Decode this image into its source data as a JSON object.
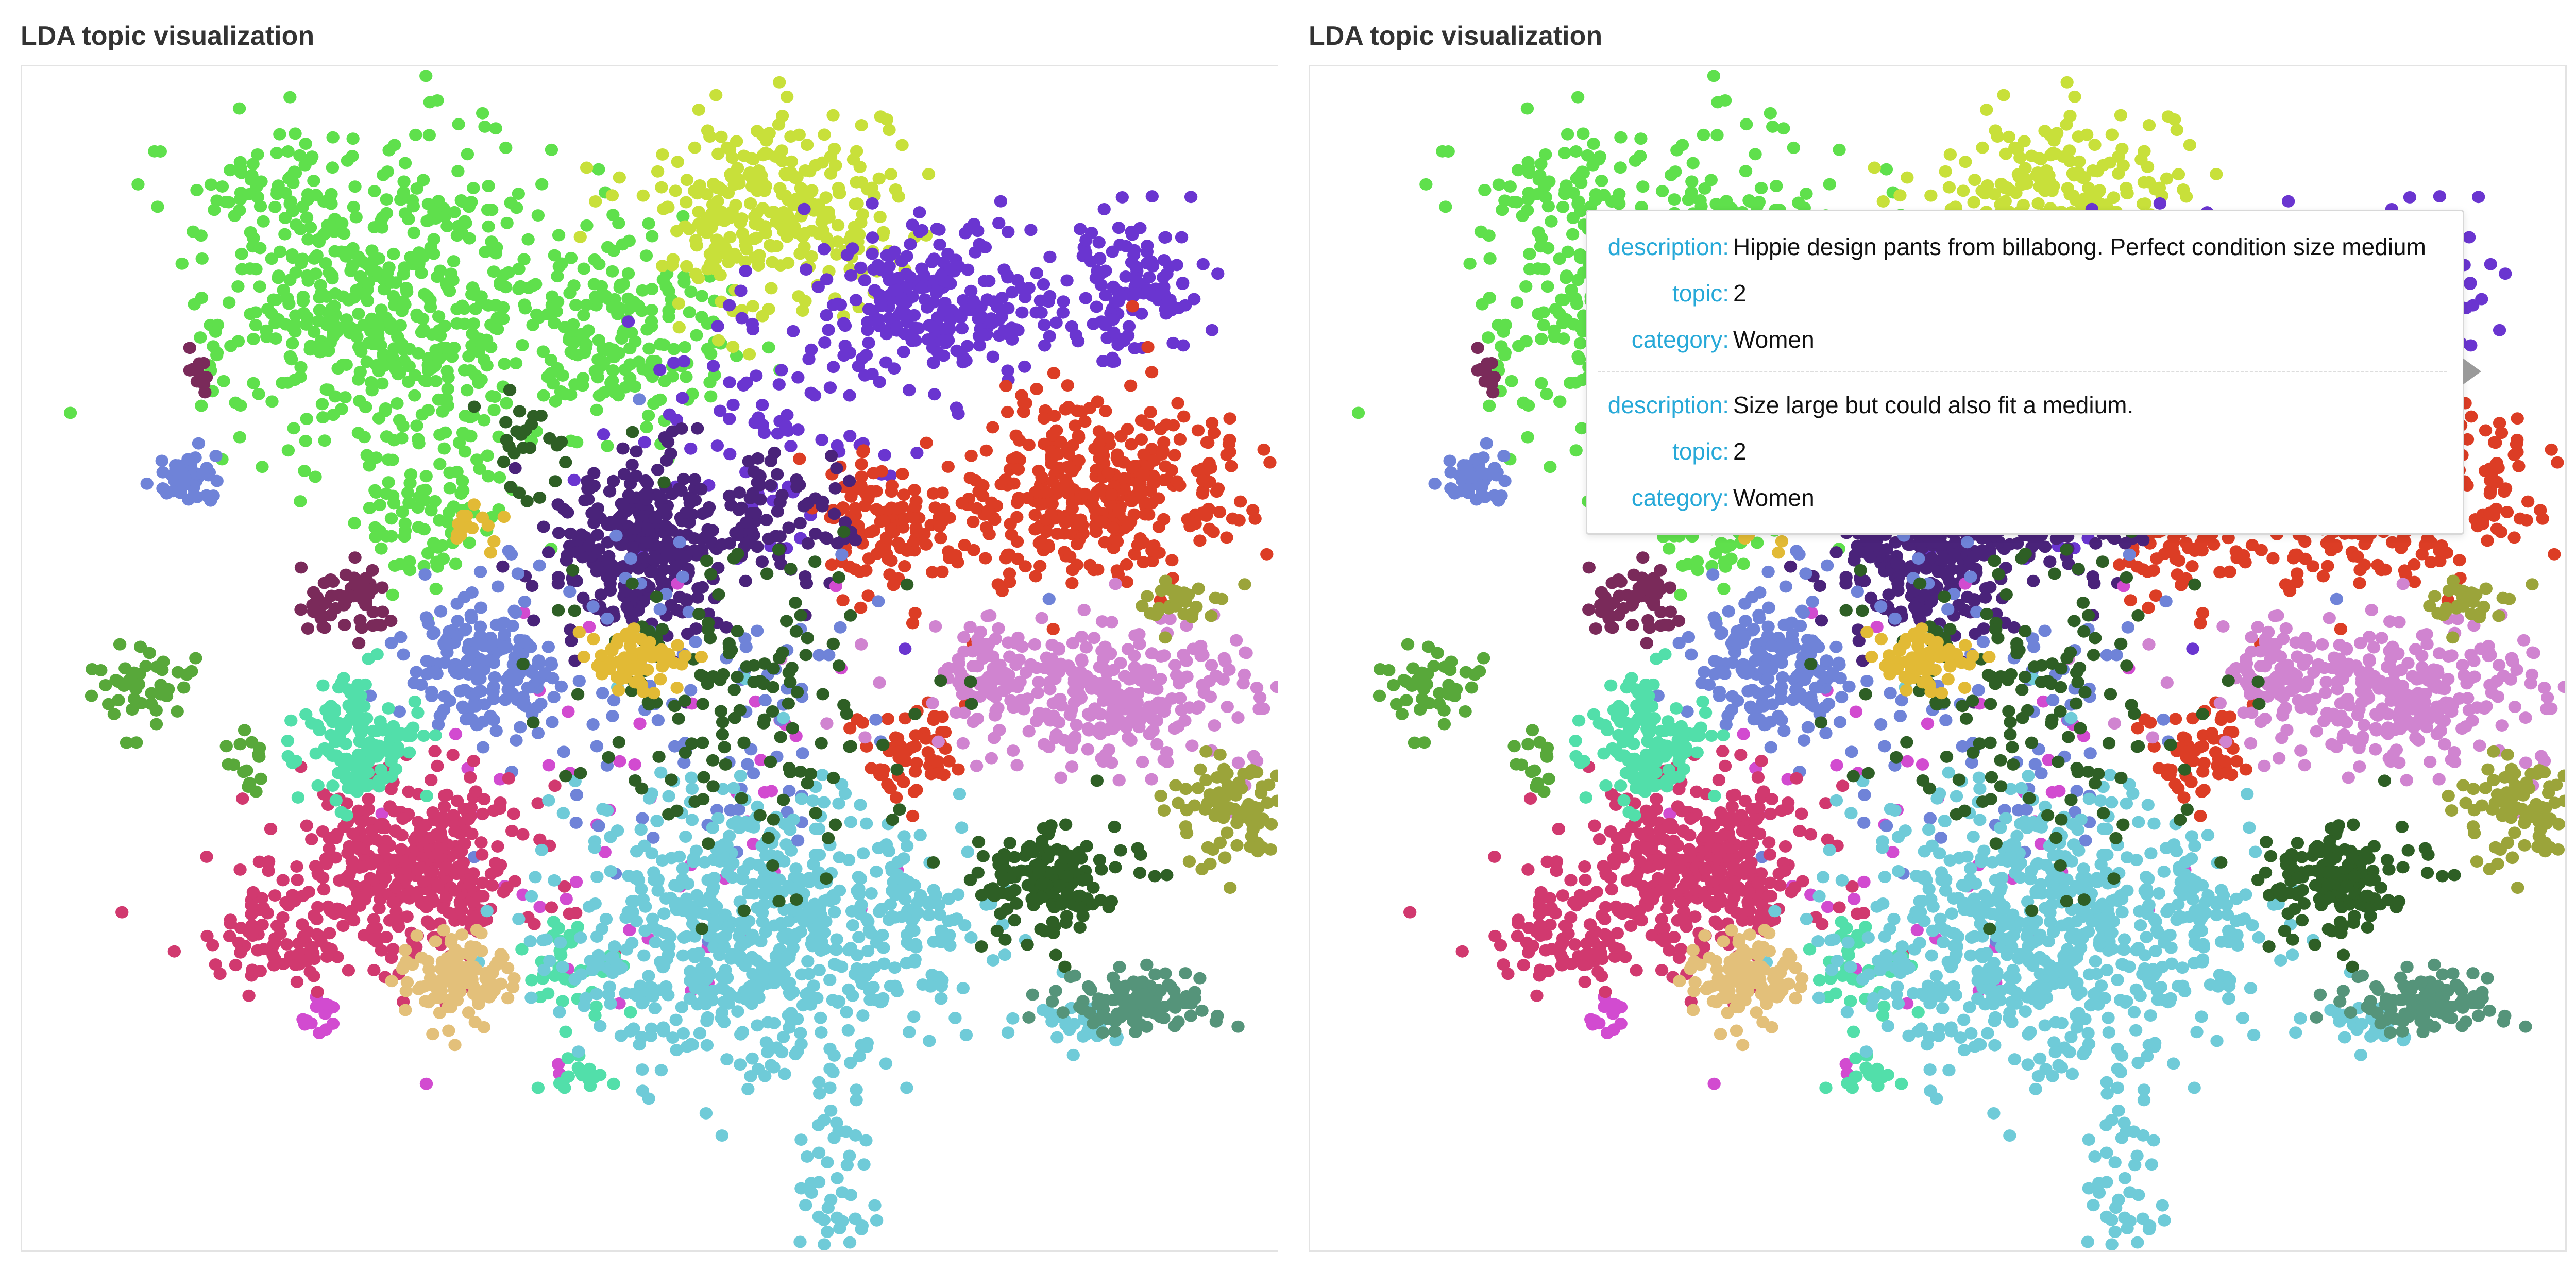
{
  "panels": [
    {
      "title": "LDA topic visualization"
    },
    {
      "title": "LDA topic visualization"
    }
  ],
  "tooltip": {
    "entries": [
      {
        "keys": {
          "description": "description:",
          "topic": "topic:",
          "category": "category:"
        },
        "description": "Hippie design pants from billabong. Perfect condition size medium",
        "topic": "2",
        "category": "Women"
      },
      {
        "keys": {
          "description": "description:",
          "topic": "topic:",
          "category": "category:"
        },
        "description": "Size large but could also fit a medium.",
        "topic": "2",
        "category": "Women"
      }
    ]
  },
  "chart_data": {
    "type": "scatter",
    "title": "LDA topic visualization",
    "xlabel": "",
    "ylabel": "",
    "xlim": [
      0,
      100
    ],
    "ylim": [
      0,
      100
    ],
    "grid": false,
    "legend": "none",
    "seed": 7,
    "topics": [
      {
        "color": "#5fe04c",
        "clusters": [
          {
            "x": 29,
            "y": 80,
            "sx": 7,
            "sy": 7,
            "n": 520
          },
          {
            "x": 48,
            "y": 78,
            "sx": 4,
            "sy": 4,
            "n": 180
          },
          {
            "x": 32,
            "y": 62,
            "sx": 3,
            "sy": 3,
            "n": 80
          },
          {
            "x": 22,
            "y": 90,
            "sx": 5,
            "sy": 2,
            "n": 60
          }
        ]
      },
      {
        "color": "#c8e03a",
        "clusters": [
          {
            "x": 60,
            "y": 88,
            "sx": 5,
            "sy": 4,
            "n": 300
          }
        ]
      },
      {
        "color": "#6a35d0",
        "clusters": [
          {
            "x": 73,
            "y": 80,
            "sx": 5,
            "sy": 3,
            "n": 250
          },
          {
            "x": 88,
            "y": 82,
            "sx": 3,
            "sy": 3,
            "n": 120
          },
          {
            "x": 59,
            "y": 70,
            "sx": 6,
            "sy": 6,
            "n": 80
          }
        ]
      },
      {
        "color": "#dc3d25",
        "clusters": [
          {
            "x": 86,
            "y": 64,
            "sx": 6,
            "sy": 4,
            "n": 380
          },
          {
            "x": 69,
            "y": 61,
            "sx": 3,
            "sy": 3,
            "n": 120
          },
          {
            "x": 71,
            "y": 42,
            "sx": 2,
            "sy": 2,
            "n": 60
          }
        ]
      },
      {
        "color": "#4a237a",
        "clusters": [
          {
            "x": 49,
            "y": 60,
            "sx": 3.5,
            "sy": 4,
            "n": 300
          },
          {
            "x": 60,
            "y": 62,
            "sx": 3,
            "sy": 3,
            "n": 80
          }
        ]
      },
      {
        "color": "#d24bd0",
        "clusters": [
          {
            "x": 24,
            "y": 20,
            "sx": 0.8,
            "sy": 0.8,
            "n": 15
          },
          {
            "x": 49,
            "y": 35,
            "sx": 10,
            "sy": 10,
            "n": 60
          }
        ]
      },
      {
        "color": "#6f83d8",
        "clusters": [
          {
            "x": 37,
            "y": 50,
            "sx": 3,
            "sy": 3,
            "n": 180
          },
          {
            "x": 13,
            "y": 65,
            "sx": 1.5,
            "sy": 1.2,
            "n": 50
          },
          {
            "x": 55,
            "y": 45,
            "sx": 8,
            "sy": 8,
            "n": 90
          }
        ]
      },
      {
        "color": "#d1396f",
        "clusters": [
          {
            "x": 31,
            "y": 32,
            "sx": 5,
            "sy": 4,
            "n": 380
          },
          {
            "x": 21,
            "y": 26,
            "sx": 3,
            "sy": 2,
            "n": 80
          }
        ]
      },
      {
        "color": "#52dfaa",
        "clusters": [
          {
            "x": 27,
            "y": 43,
            "sx": 2.5,
            "sy": 2.5,
            "n": 140
          },
          {
            "x": 44,
            "y": 24,
            "sx": 2,
            "sy": 2,
            "n": 40
          },
          {
            "x": 45,
            "y": 15,
            "sx": 1.5,
            "sy": 1,
            "n": 20
          }
        ]
      },
      {
        "color": "#6fcbd8",
        "clusters": [
          {
            "x": 58,
            "y": 27,
            "sx": 7,
            "sy": 6,
            "n": 620
          },
          {
            "x": 65,
            "y": 7,
            "sx": 1.5,
            "sy": 4,
            "n": 45
          },
          {
            "x": 72,
            "y": 28,
            "sx": 3,
            "sy": 3,
            "n": 80
          },
          {
            "x": 84,
            "y": 19,
            "sx": 2,
            "sy": 1,
            "n": 30
          }
        ]
      },
      {
        "color": "#d084d0",
        "clusters": [
          {
            "x": 86,
            "y": 47,
            "sx": 6,
            "sy": 3,
            "n": 300
          },
          {
            "x": 77,
            "y": 49,
            "sx": 2,
            "sy": 2,
            "n": 60
          }
        ]
      },
      {
        "color": "#2e5f25",
        "clusters": [
          {
            "x": 82,
            "y": 31,
            "sx": 3,
            "sy": 2.5,
            "n": 150
          },
          {
            "x": 57,
            "y": 47,
            "sx": 7,
            "sy": 7,
            "n": 150
          },
          {
            "x": 40,
            "y": 68,
            "sx": 2,
            "sy": 2,
            "n": 25
          }
        ]
      },
      {
        "color": "#e2ba35",
        "clusters": [
          {
            "x": 49,
            "y": 50,
            "sx": 2,
            "sy": 1.5,
            "n": 70
          },
          {
            "x": 36,
            "y": 61,
            "sx": 1,
            "sy": 1,
            "n": 15
          }
        ]
      },
      {
        "color": "#e3c07a",
        "clusters": [
          {
            "x": 35,
            "y": 23,
            "sx": 2,
            "sy": 2,
            "n": 110
          }
        ]
      },
      {
        "color": "#9ba43a",
        "clusters": [
          {
            "x": 97,
            "y": 37,
            "sx": 3,
            "sy": 2.5,
            "n": 110
          },
          {
            "x": 93,
            "y": 55,
            "sx": 2,
            "sy": 1.2,
            "n": 30
          }
        ]
      },
      {
        "color": "#55947a",
        "clusters": [
          {
            "x": 88,
            "y": 21,
            "sx": 3,
            "sy": 1.2,
            "n": 110
          }
        ]
      },
      {
        "color": "#7a2a5a",
        "clusters": [
          {
            "x": 26,
            "y": 55,
            "sx": 2,
            "sy": 1.5,
            "n": 60
          },
          {
            "x": 14,
            "y": 74,
            "sx": 0.6,
            "sy": 1,
            "n": 12
          }
        ]
      },
      {
        "color": "#58a83a",
        "clusters": [
          {
            "x": 10,
            "y": 48,
            "sx": 2,
            "sy": 2.5,
            "n": 45
          },
          {
            "x": 18,
            "y": 42,
            "sx": 1,
            "sy": 1,
            "n": 15
          }
        ]
      }
    ]
  }
}
